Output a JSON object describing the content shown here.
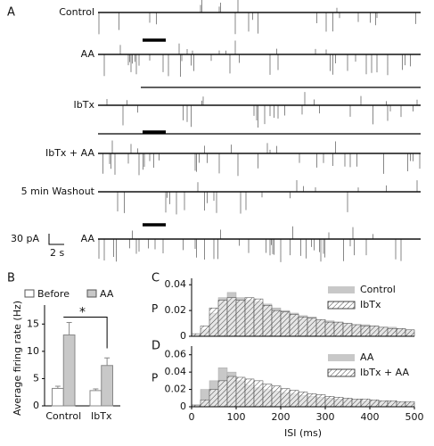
{
  "traces": {
    "panel_label": "A",
    "labels": [
      "Control",
      "AA",
      "IbTx",
      "IbTx + AA",
      "5 min Washout",
      "AA"
    ],
    "scale_y": "30 pA",
    "scale_x": "2 s"
  },
  "chart_data": [
    {
      "type": "bar",
      "panel_label": "B",
      "ylabel": "Average firing rate (Hz)",
      "categories": [
        "Control",
        "IbTx"
      ],
      "series": [
        {
          "name": "Before",
          "color": "#ffffff",
          "values": [
            3.2,
            2.8
          ],
          "errors": [
            0.4,
            0.3
          ]
        },
        {
          "name": "AA",
          "color": "#c8c8c8",
          "values": [
            13,
            7.4
          ],
          "errors": [
            2.3,
            1.4
          ]
        }
      ],
      "ylim": [
        0,
        17.5
      ],
      "yticks": [
        0,
        5,
        10,
        15
      ],
      "annotation": "*"
    },
    {
      "type": "histogram",
      "panel_label": "C",
      "ylabel": "P",
      "bins": [
        0,
        20,
        40,
        60,
        80,
        100,
        120,
        140,
        160,
        180,
        200,
        220,
        240,
        260,
        280,
        300,
        320,
        340,
        360,
        380,
        400,
        420,
        440,
        460,
        480,
        500
      ],
      "series": [
        {
          "name": "Control",
          "color": "#c8c8c8",
          "values": [
            0.001,
            0.005,
            0.018,
            0.03,
            0.034,
            0.03,
            0.028,
            0.027,
            0.025,
            0.022,
            0.02,
            0.018,
            0.016,
            0.015,
            0.013,
            0.012,
            0.011,
            0.01,
            0.009,
            0.009,
            0.008,
            0.007,
            0.007,
            0.006,
            0.005
          ]
        },
        {
          "name": "IbTx",
          "color": "#444444",
          "pattern": "hatch",
          "values": [
            0.002,
            0.008,
            0.022,
            0.028,
            0.03,
            0.028,
            0.03,
            0.029,
            0.024,
            0.02,
            0.019,
            0.017,
            0.015,
            0.014,
            0.013,
            0.011,
            0.011,
            0.01,
            0.009,
            0.008,
            0.008,
            0.007,
            0.006,
            0.006,
            0.005
          ]
        }
      ],
      "xlim": [
        0,
        500
      ],
      "ylim": [
        0,
        0.045
      ],
      "yticks": [
        0,
        0.02,
        0.04
      ]
    },
    {
      "type": "histogram",
      "panel_label": "D",
      "ylabel": "P",
      "xlabel": "ISI (ms)",
      "bins": [
        0,
        20,
        40,
        60,
        80,
        100,
        120,
        140,
        160,
        180,
        200,
        220,
        240,
        260,
        280,
        300,
        320,
        340,
        360,
        380,
        400,
        420,
        440,
        460,
        480,
        500
      ],
      "series": [
        {
          "name": "AA",
          "color": "#c8c8c8",
          "values": [
            0.002,
            0.02,
            0.03,
            0.045,
            0.04,
            0.03,
            0.025,
            0.022,
            0.02,
            0.018,
            0.016,
            0.015,
            0.013,
            0.012,
            0.011,
            0.01,
            0.009,
            0.009,
            0.008,
            0.007,
            0.007,
            0.006,
            0.006,
            0.005,
            0.005
          ]
        },
        {
          "name": "IbTx + AA",
          "color": "#444444",
          "pattern": "hatch",
          "values": [
            0.002,
            0.008,
            0.02,
            0.03,
            0.035,
            0.034,
            0.032,
            0.03,
            0.026,
            0.024,
            0.021,
            0.019,
            0.017,
            0.015,
            0.014,
            0.012,
            0.011,
            0.01,
            0.009,
            0.009,
            0.008,
            0.007,
            0.007,
            0.006,
            0.006
          ]
        }
      ],
      "xlim": [
        0,
        500
      ],
      "ylim": [
        0,
        0.07
      ],
      "yticks": [
        0,
        0.02,
        0.04,
        0.06
      ],
      "xticks": [
        0,
        100,
        200,
        300,
        400,
        500
      ]
    }
  ]
}
